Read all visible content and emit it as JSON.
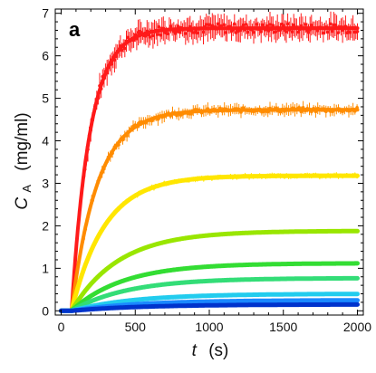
{
  "chart_data": {
    "type": "scatter",
    "panel_label": "a",
    "xlabel": {
      "italic": "t",
      "rest": "(s)"
    },
    "ylabel": {
      "italic": "C",
      "subscript": "A",
      "rest": "(mg/ml)"
    },
    "xlim": [
      -40,
      2040
    ],
    "ylim": [
      -0.1,
      7.1
    ],
    "x_ticks": [
      0,
      500,
      1000,
      1500,
      2000
    ],
    "x_tick_labels": [
      "0",
      "500",
      "1000",
      "1500",
      "2000"
    ],
    "y_ticks": [
      0,
      1,
      2,
      3,
      4,
      5,
      6,
      7
    ],
    "y_tick_labels": [
      "0",
      "1",
      "2",
      "3",
      "4",
      "5",
      "6",
      "7"
    ],
    "grid": false,
    "legend": "none",
    "x_start": 70,
    "series": [
      {
        "color": "#ff1a1a",
        "plateau": 6.65,
        "tau": 125,
        "x": [
          70,
          100,
          150,
          200,
          250,
          300,
          350,
          400,
          500,
          600,
          800,
          1000,
          1500,
          2000
        ],
        "y": [
          0.0,
          1.4,
          3.1,
          4.3,
          5.1,
          5.6,
          5.95,
          6.15,
          6.4,
          6.5,
          6.6,
          6.63,
          6.65,
          6.65
        ]
      },
      {
        "color": "#ff8c00",
        "plateau": 4.73,
        "tau": 175,
        "x": [
          70,
          100,
          150,
          200,
          250,
          300,
          400,
          500,
          600,
          800,
          1000,
          1500,
          2000
        ],
        "y": [
          0.0,
          0.7,
          1.6,
          2.3,
          2.85,
          3.3,
          3.85,
          4.15,
          4.35,
          4.55,
          4.62,
          4.7,
          4.73
        ]
      },
      {
        "color": "#ffe600",
        "plateau": 3.18,
        "tau": 225,
        "x": [
          70,
          150,
          200,
          300,
          400,
          500,
          700,
          1000,
          1500,
          2000
        ],
        "y": [
          0.0,
          0.85,
          1.3,
          1.95,
          2.4,
          2.65,
          2.9,
          3.05,
          3.15,
          3.18
        ]
      },
      {
        "color": "#99e600",
        "plateau": 1.88,
        "tau": 320,
        "x": [
          70,
          200,
          300,
          400,
          500,
          700,
          1000,
          1500,
          2000
        ],
        "y": [
          0.0,
          0.55,
          0.85,
          1.1,
          1.3,
          1.55,
          1.72,
          1.84,
          1.88
        ]
      },
      {
        "color": "#33dd33",
        "plateau": 1.12,
        "tau": 350,
        "x": [
          70,
          200,
          300,
          500,
          700,
          1000,
          1500,
          2000
        ],
        "y": [
          0.0,
          0.3,
          0.5,
          0.75,
          0.9,
          1.02,
          1.1,
          1.12
        ]
      },
      {
        "color": "#33dd77",
        "plateau": 0.77,
        "tau": 380,
        "x": [
          70,
          200,
          400,
          600,
          1000,
          1500,
          2000
        ],
        "y": [
          0.0,
          0.2,
          0.42,
          0.56,
          0.68,
          0.75,
          0.77
        ]
      },
      {
        "color": "#22ccee",
        "plateau": 0.4,
        "tau": 420,
        "x": [
          70,
          200,
          500,
          1000,
          1500,
          2000
        ],
        "y": [
          0.0,
          0.1,
          0.25,
          0.35,
          0.39,
          0.4
        ]
      },
      {
        "color": "#1a88ff",
        "plateau": 0.25,
        "tau": 450,
        "x": [
          70,
          300,
          700,
          1200,
          2000
        ],
        "y": [
          0.0,
          0.1,
          0.18,
          0.23,
          0.25
        ]
      },
      {
        "color": "#0033cc",
        "plateau": 0.15,
        "tau": 480,
        "x": [
          70,
          300,
          800,
          1400,
          2000
        ],
        "y": [
          0.0,
          0.05,
          0.11,
          0.14,
          0.15
        ]
      }
    ]
  }
}
